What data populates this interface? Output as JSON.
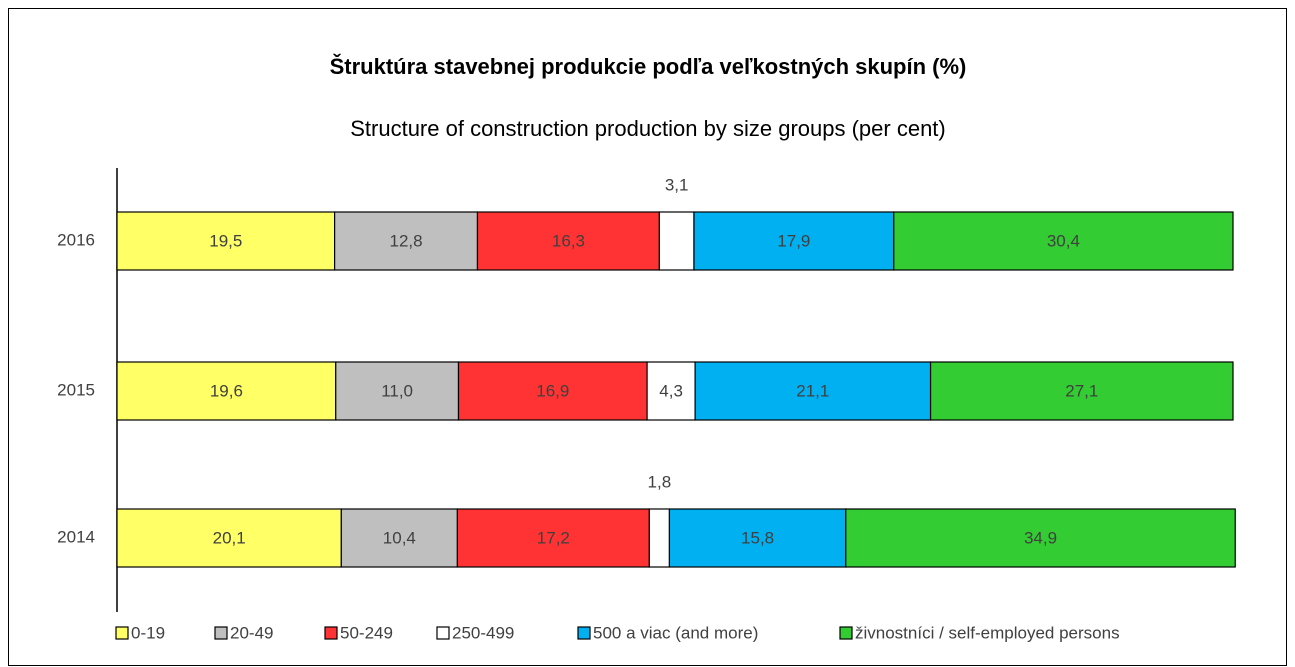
{
  "chart_data": {
    "type": "stacked-barh",
    "title": "Štruktúra stavebnej produkcie podľa veľkostných skupín (%)",
    "subtitle": "Structure of construction production by size groups (per cent)",
    "categories": [
      "2016",
      "2015",
      "2014"
    ],
    "xlim": [
      0,
      100
    ],
    "series": [
      {
        "name": "0-19",
        "color": "#ffff66",
        "values": [
          19.5,
          19.6,
          20.1
        ],
        "value_labels": [
          "19,5",
          "19,6",
          "20,1"
        ]
      },
      {
        "name": "20-49",
        "color": "#bfbfbf",
        "values": [
          12.8,
          11.0,
          10.4
        ],
        "value_labels": [
          "12,8",
          "11,0",
          "10,4"
        ]
      },
      {
        "name": "50-249",
        "color": "#ff3333",
        "values": [
          16.3,
          16.9,
          17.2
        ],
        "value_labels": [
          "16,3",
          "16,9",
          "17,2"
        ]
      },
      {
        "name": "250-499",
        "color": "#ffffff",
        "values": [
          3.1,
          4.3,
          1.8
        ],
        "value_labels": [
          "3,1",
          "4,3",
          "1,8"
        ]
      },
      {
        "name": "500 a viac (and more)",
        "color": "#00b0f0",
        "values": [
          17.9,
          21.1,
          15.8
        ],
        "value_labels": [
          "17,9",
          "21,1",
          "15,8"
        ]
      },
      {
        "name": "živnostníci / self-employed persons",
        "color": "#33cc33",
        "values": [
          30.4,
          27.1,
          34.9
        ],
        "value_labels": [
          "30,4",
          "27,1",
          "34,9"
        ]
      }
    ]
  }
}
